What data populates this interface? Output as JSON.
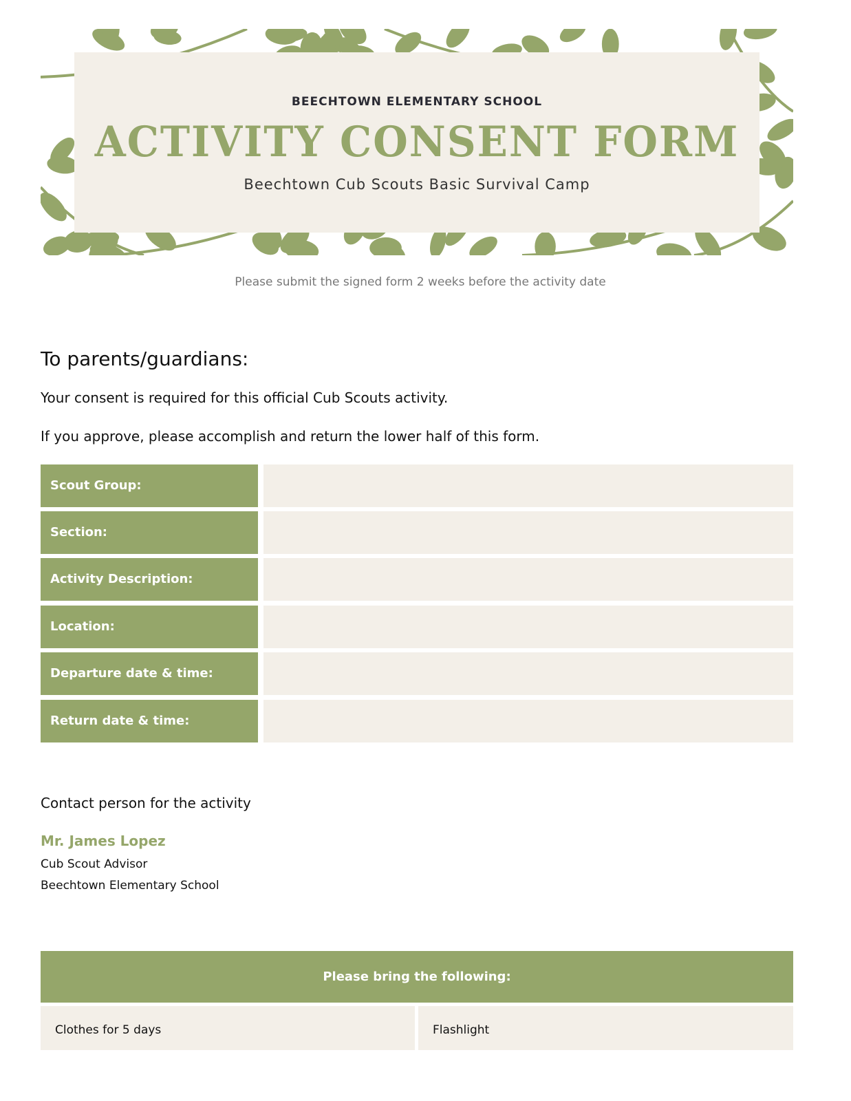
{
  "colors": {
    "accent": "#95a66a",
    "field": "#f3efe8"
  },
  "header": {
    "school": "BEECHTOWN ELEMENTARY SCHOOL",
    "title": "ACTIVITY CONSENT FORM",
    "subtitle": "Beechtown Cub Scouts Basic Survival Camp",
    "decoration": "leaf-pattern"
  },
  "note": "Please submit the signed form 2 weeks before the activity date",
  "intro": {
    "heading": "To parents/guardians:",
    "line1": "Your consent is required for this official Cub Scouts activity.",
    "line2": "If you approve, please accomplish and return the lower half of this form."
  },
  "form": {
    "rows": [
      {
        "label": "Scout Group:",
        "value": ""
      },
      {
        "label": "Section:",
        "value": ""
      },
      {
        "label": "Activity Description:",
        "value": ""
      },
      {
        "label": "Location:",
        "value": ""
      },
      {
        "label": "Departure date & time:",
        "value": ""
      },
      {
        "label": "Return date & time:",
        "value": ""
      }
    ]
  },
  "contact": {
    "title": "Contact person for the activity",
    "name": "Mr. James Lopez",
    "role": "Cub Scout Advisor",
    "org": "Beechtown Elementary School"
  },
  "bring": {
    "heading": "Please bring the following:",
    "items": [
      "Clothes for 5 days",
      "Flashlight"
    ]
  }
}
